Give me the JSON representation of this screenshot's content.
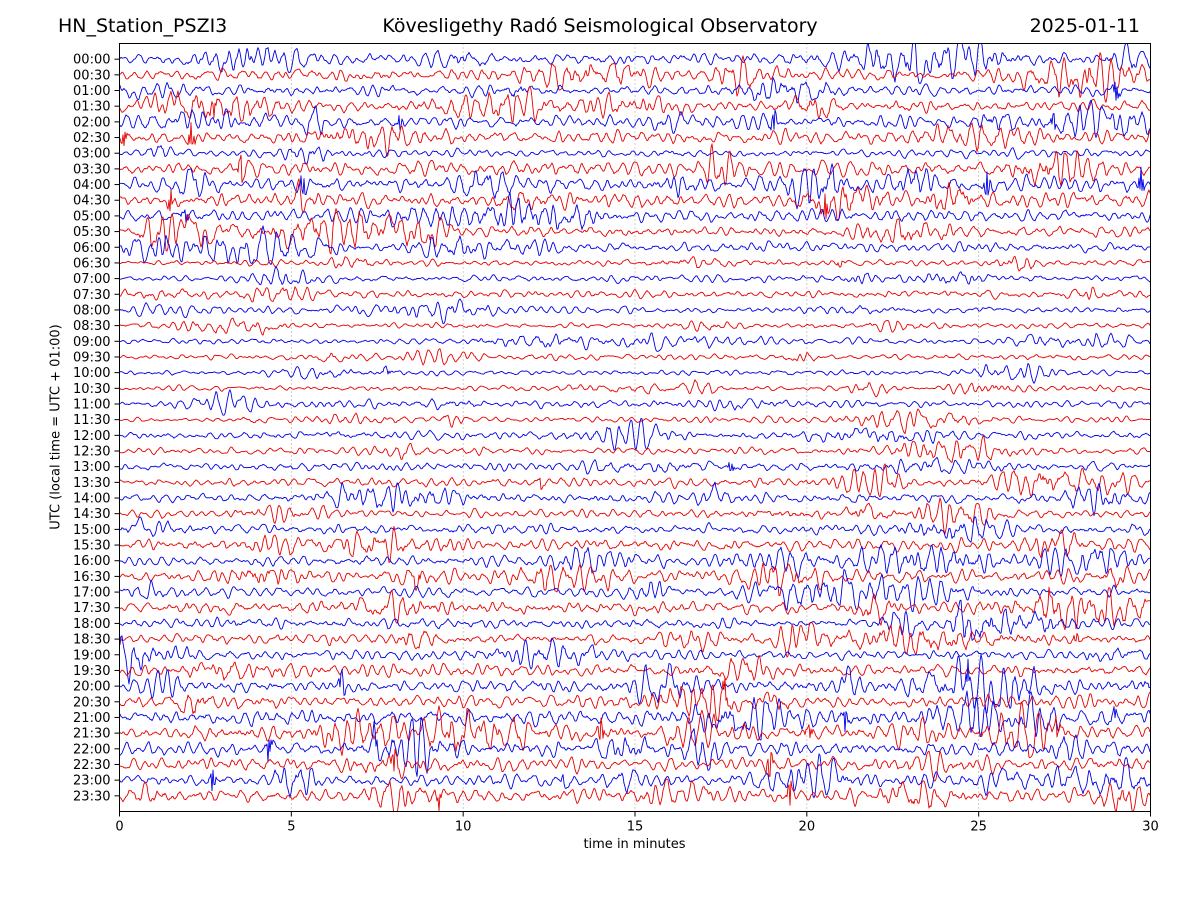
{
  "header": {
    "station": "HN_Station_PSZI3",
    "title": "Kövesligethy Radó Seismological Observatory",
    "date": "2025-01-11"
  },
  "chart_data": {
    "type": "line",
    "subtype": "helicorder-dayplot",
    "station": "HN_Station_PSZI3",
    "title": "Kövesligethy Radó Seismological Observatory",
    "date": "2025-01-11",
    "xlabel": "time in minutes",
    "ylabel": "UTC (local time = UTC + 01:00)",
    "x_range": [
      0,
      30
    ],
    "x_ticks": [
      0,
      5,
      10,
      15,
      20,
      25,
      30
    ],
    "grid_x": [
      5,
      10,
      15,
      20,
      25
    ],
    "grid_style": "dotted",
    "grid_color": "#888888",
    "minutes_per_row": 30,
    "trace_colors": {
      "even_rows": "#0000e6",
      "odd_rows": "#e60000"
    },
    "border_color": "#000000",
    "background_color": "#ffffff",
    "rows": [
      {
        "label": "00:00",
        "color": "#0000e6",
        "amplitude": 0.75
      },
      {
        "label": "00:30",
        "color": "#e60000",
        "amplitude": 0.8
      },
      {
        "label": "01:00",
        "color": "#0000e6",
        "amplitude": 0.7
      },
      {
        "label": "01:30",
        "color": "#e60000",
        "amplitude": 0.75
      },
      {
        "label": "02:00",
        "color": "#0000e6",
        "amplitude": 0.9
      },
      {
        "label": "02:30",
        "color": "#e60000",
        "amplitude": 0.85
      },
      {
        "label": "03:00",
        "color": "#0000e6",
        "amplitude": 0.55
      },
      {
        "label": "03:30",
        "color": "#e60000",
        "amplitude": 1.0
      },
      {
        "label": "04:00",
        "color": "#0000e6",
        "amplitude": 1.0
      },
      {
        "label": "04:30",
        "color": "#e60000",
        "amplitude": 0.95
      },
      {
        "label": "05:00",
        "color": "#0000e6",
        "amplitude": 0.85
      },
      {
        "label": "05:30",
        "color": "#e60000",
        "amplitude": 0.7
      },
      {
        "label": "06:00",
        "color": "#0000e6",
        "amplitude": 0.65
      },
      {
        "label": "06:30",
        "color": "#e60000",
        "amplitude": 0.4
      },
      {
        "label": "07:00",
        "color": "#0000e6",
        "amplitude": 0.45
      },
      {
        "label": "07:30",
        "color": "#e60000",
        "amplitude": 0.5
      },
      {
        "label": "08:00",
        "color": "#0000e6",
        "amplitude": 0.45
      },
      {
        "label": "08:30",
        "color": "#e60000",
        "amplitude": 0.35
      },
      {
        "label": "09:00",
        "color": "#0000e6",
        "amplitude": 0.4
      },
      {
        "label": "09:30",
        "color": "#e60000",
        "amplitude": 0.4
      },
      {
        "label": "10:00",
        "color": "#0000e6",
        "amplitude": 0.35
      },
      {
        "label": "10:30",
        "color": "#e60000",
        "amplitude": 0.35
      },
      {
        "label": "11:00",
        "color": "#0000e6",
        "amplitude": 0.5
      },
      {
        "label": "11:30",
        "color": "#e60000",
        "amplitude": 0.4
      },
      {
        "label": "12:00",
        "color": "#0000e6",
        "amplitude": 0.55
      },
      {
        "label": "12:30",
        "color": "#e60000",
        "amplitude": 0.5
      },
      {
        "label": "13:00",
        "color": "#0000e6",
        "amplitude": 0.55
      },
      {
        "label": "13:30",
        "color": "#e60000",
        "amplitude": 0.6
      },
      {
        "label": "14:00",
        "color": "#0000e6",
        "amplitude": 0.65
      },
      {
        "label": "14:30",
        "color": "#e60000",
        "amplitude": 0.55
      },
      {
        "label": "15:00",
        "color": "#0000e6",
        "amplitude": 0.65
      },
      {
        "label": "15:30",
        "color": "#e60000",
        "amplitude": 0.8
      },
      {
        "label": "16:00",
        "color": "#0000e6",
        "amplitude": 0.7
      },
      {
        "label": "16:30",
        "color": "#e60000",
        "amplitude": 0.9
      },
      {
        "label": "17:00",
        "color": "#0000e6",
        "amplitude": 0.75
      },
      {
        "label": "17:30",
        "color": "#e60000",
        "amplitude": 0.8
      },
      {
        "label": "18:00",
        "color": "#0000e6",
        "amplitude": 0.65
      },
      {
        "label": "18:30",
        "color": "#e60000",
        "amplitude": 0.65
      },
      {
        "label": "19:00",
        "color": "#0000e6",
        "amplitude": 0.65
      },
      {
        "label": "19:30",
        "color": "#e60000",
        "amplitude": 0.8
      },
      {
        "label": "20:00",
        "color": "#0000e6",
        "amplitude": 0.9
      },
      {
        "label": "20:30",
        "color": "#e60000",
        "amplitude": 0.9
      },
      {
        "label": "21:00",
        "color": "#0000e6",
        "amplitude": 1.0
      },
      {
        "label": "21:30",
        "color": "#e60000",
        "amplitude": 1.0
      },
      {
        "label": "22:00",
        "color": "#0000e6",
        "amplitude": 0.95
      },
      {
        "label": "22:30",
        "color": "#e60000",
        "amplitude": 0.95
      },
      {
        "label": "23:00",
        "color": "#0000e6",
        "amplitude": 0.85
      },
      {
        "label": "23:30",
        "color": "#e60000",
        "amplitude": 0.9
      }
    ]
  }
}
